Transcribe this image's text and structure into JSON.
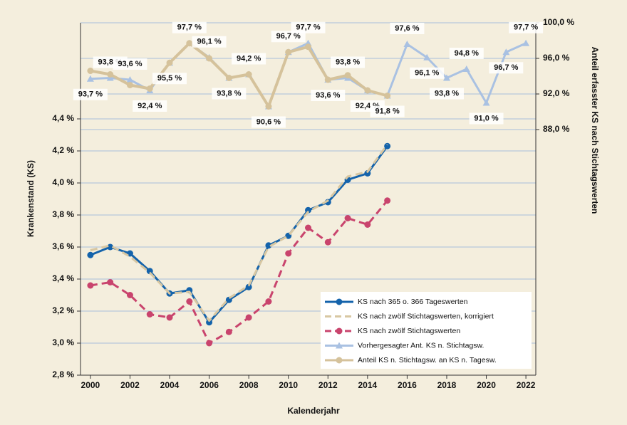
{
  "chart_data": {
    "type": "line",
    "ylabel": "Krankenstand (KS)",
    "y2label": "Anteil erfasster KS nach Stichtagswerten",
    "xlabel": "Kalenderjahr",
    "x": [
      2000,
      2001,
      2002,
      2003,
      2004,
      2005,
      2006,
      2007,
      2008,
      2009,
      2010,
      2011,
      2012,
      2013,
      2014,
      2015,
      2016,
      2017,
      2018,
      2019,
      2020,
      2021,
      2022
    ],
    "xlim": [
      1999.5,
      2022.5
    ],
    "xticks": [
      2000,
      2002,
      2004,
      2006,
      2008,
      2010,
      2012,
      2014,
      2016,
      2018,
      2020,
      2022
    ],
    "ylim": [
      2.8,
      5.0
    ],
    "yticks": [
      {
        "value": 2.8,
        "label": "2,8 %"
      },
      {
        "value": 3.0,
        "label": "3,0 %"
      },
      {
        "value": 3.2,
        "label": "3,2 %"
      },
      {
        "value": 3.4,
        "label": "3,4 %"
      },
      {
        "value": 3.6,
        "label": "3,6 %"
      },
      {
        "value": 3.8,
        "label": "3,8 %"
      },
      {
        "value": 4.0,
        "label": "4,0 %"
      },
      {
        "value": 4.2,
        "label": "4,2 %"
      },
      {
        "value": 4.4,
        "label": "4,4 %"
      }
    ],
    "y2lim": [
      60.4,
      100
    ],
    "y2ticks": [
      {
        "value": 88,
        "label": "88,0 %"
      },
      {
        "value": 92,
        "label": "92,0 %"
      },
      {
        "value": 96,
        "label": "96,0 %"
      },
      {
        "value": 100,
        "label": "100,0 %"
      }
    ],
    "grid": true,
    "legend": "lower right",
    "series": [
      {
        "name": "Vorhergesagter Ant. KS n. Stichtagsw.",
        "color": "#a9c1e2",
        "axis": "y2",
        "marker": "triangle",
        "values": [
          93.7,
          93.8,
          93.6,
          92.4,
          95.5,
          97.7,
          96.1,
          93.8,
          94.2,
          90.6,
          96.7,
          97.7,
          93.6,
          93.8,
          92.4,
          91.8,
          97.6,
          96.1,
          93.8,
          94.8,
          91.0,
          96.7,
          97.7
        ],
        "value_labels": [
          "93,7 %",
          "93,8 %",
          "93,6 %",
          "92,4 %",
          "95,5 %",
          "97,7 %",
          "96,1 %",
          "93,8 %",
          "94,2 %",
          "90,6 %",
          "96,7 %",
          "97,7 %",
          "93,6 %",
          "93,8 %",
          "92,4 %",
          "91,8 %",
          "97,6 %",
          "96,1 %",
          "93,8 %",
          "94,8 %",
          "91,0 %",
          "96,7 %",
          "97,7 %"
        ]
      },
      {
        "name": "Anteil KS n. Stichtagsw. an KS n. Tagesw.",
        "color": "#d5c29b",
        "axis": "y2",
        "marker": "circle",
        "values": [
          94.6,
          94.2,
          93.0,
          92.6,
          95.5,
          97.7,
          96.0,
          93.8,
          94.2,
          90.6,
          96.7,
          97.3,
          93.6,
          94.1,
          92.4,
          91.8,
          null,
          null,
          null,
          null,
          null,
          null,
          null
        ]
      },
      {
        "name": "KS nach zwölf Stichtagswerten",
        "color": "#c9446d",
        "axis": "y",
        "marker": "circle",
        "dash": true,
        "values": [
          3.36,
          3.38,
          3.3,
          3.18,
          3.16,
          3.26,
          3.0,
          3.07,
          3.16,
          3.26,
          3.56,
          3.72,
          3.63,
          3.78,
          3.74,
          3.89,
          null,
          null,
          null,
          null,
          null,
          null,
          null
        ]
      },
      {
        "name": "KS nach 365 o. 366 Tageswerten",
        "color": "#1463ab",
        "axis": "y",
        "marker": "circle",
        "values": [
          3.55,
          3.6,
          3.56,
          3.45,
          3.31,
          3.33,
          3.13,
          3.27,
          3.35,
          3.61,
          3.67,
          3.83,
          3.88,
          4.02,
          4.06,
          4.23,
          null,
          null,
          null,
          null,
          null,
          null,
          null
        ]
      },
      {
        "name": "KS nach zwölf Stichtagswerten, korrigiert",
        "color": "#d8c7a2",
        "axis": "y",
        "marker": "none",
        "dash": true,
        "values": [
          3.58,
          3.61,
          3.54,
          3.44,
          3.31,
          3.32,
          3.14,
          3.28,
          3.36,
          3.6,
          3.67,
          3.82,
          3.89,
          4.04,
          4.07,
          4.24,
          null,
          null,
          null,
          null,
          null,
          null,
          null
        ]
      }
    ]
  }
}
